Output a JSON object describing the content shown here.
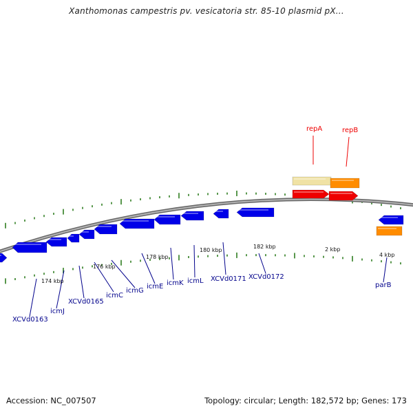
{
  "title": "Xanthomonas campestris pv. vesicatoria str. 85-10 plasmid pX...",
  "footer": {
    "accession": "Accession: NC_007507",
    "topology": "Topology: circular; Length: 182,572 bp; Genes: 173"
  },
  "colors": {
    "backbone": "#8c8c8c",
    "tick": "#2e7d1f",
    "gene_blue": "#0000e8",
    "gene_red": "#ee0000",
    "gene_orange": "#ff8c00",
    "gene_pale": "#f0e2a4",
    "label_blue": "#00008b",
    "label_red": "#cc0000"
  },
  "scale_labels": [
    "174 kbp",
    "176 kbp",
    "178 kbp",
    "180 kbp",
    "182 kbp",
    "2 kbp",
    "4 kbp"
  ],
  "gene_labels": [
    {
      "text": "XCVd0163",
      "color": "blue"
    },
    {
      "text": "icmJ",
      "color": "blue"
    },
    {
      "text": "XCVd0165",
      "color": "blue"
    },
    {
      "text": "icmC",
      "color": "blue"
    },
    {
      "text": "icmG",
      "color": "blue"
    },
    {
      "text": "icmE",
      "color": "blue"
    },
    {
      "text": "icmK",
      "color": "blue"
    },
    {
      "text": "icmL",
      "color": "blue"
    },
    {
      "text": "XCVd0171",
      "color": "blue"
    },
    {
      "text": "XCVd0172",
      "color": "blue"
    },
    {
      "text": "parB",
      "color": "blue"
    },
    {
      "text": "repA",
      "color": "red"
    },
    {
      "text": "repB",
      "color": "red"
    }
  ]
}
